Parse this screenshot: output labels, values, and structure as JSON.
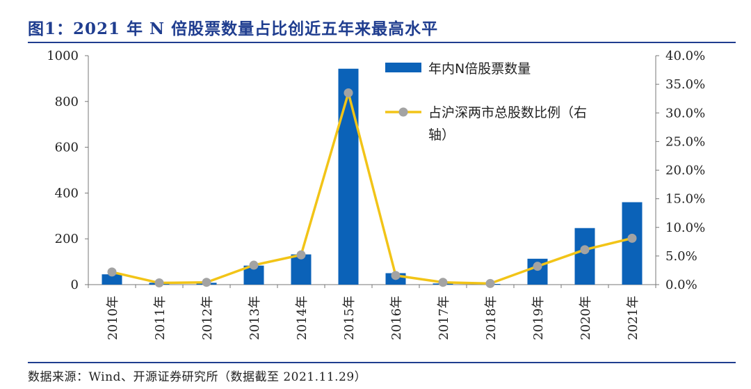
{
  "header": {
    "title": "图1：2021 年 N 倍股票数量占比创近五年来最高水平"
  },
  "footer": {
    "source": "数据来源：Wind、开源证券研究所（数据截至 2021.11.29）"
  },
  "colors": {
    "bar": "#0b62b8",
    "line": "#f2c417",
    "marker": "#a3a3a3",
    "rule": "#1f3d8f"
  },
  "chart_data": {
    "type": "bar",
    "categories": [
      "2010年",
      "2011年",
      "2012年",
      "2013年",
      "2014年",
      "2015年",
      "2016年",
      "2017年",
      "2018年",
      "2019年",
      "2020年",
      "2021年"
    ],
    "series": [
      {
        "name": "年内N倍股票数量",
        "type": "bar",
        "axis": "left",
        "values": [
          45,
          8,
          8,
          83,
          132,
          943,
          50,
          5,
          3,
          113,
          247,
          360
        ]
      },
      {
        "name": "占沪深两市总股数比例（右轴）",
        "type": "line",
        "axis": "right",
        "values": [
          2.2,
          0.3,
          0.4,
          3.4,
          5.2,
          33.5,
          1.6,
          0.4,
          0.2,
          3.2,
          6.1,
          8.1
        ]
      }
    ],
    "ylim": [
      0,
      1000
    ],
    "yticks": [
      "0",
      "200",
      "400",
      "600",
      "800",
      "1000"
    ],
    "y2lim": [
      0,
      40
    ],
    "y2ticks": [
      "0.0%",
      "5.0%",
      "10.0%",
      "15.0%",
      "20.0%",
      "25.0%",
      "30.0%",
      "35.0%",
      "40.0%"
    ],
    "legend": {
      "placement": "top-right",
      "bar_label": "年内N倍股票数量",
      "line_label_1": "占沪深两市总股数比例（右",
      "line_label_2": "轴）"
    }
  }
}
